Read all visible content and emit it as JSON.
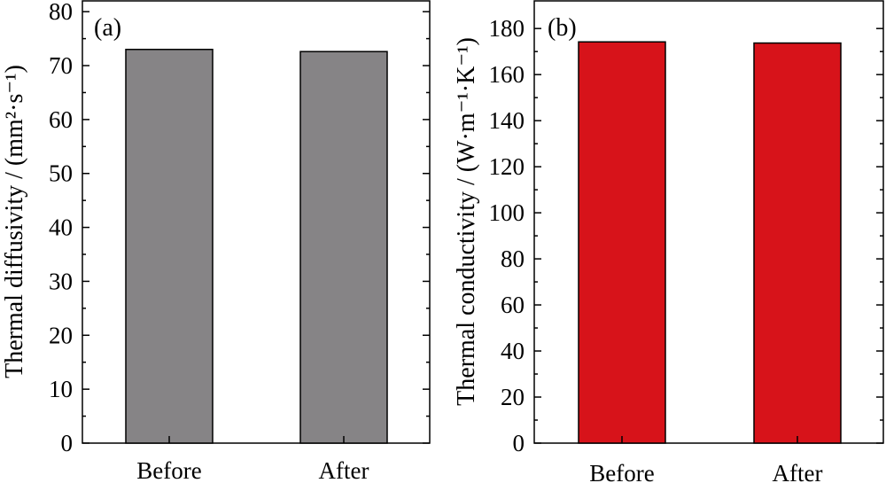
{
  "chart_data": [
    {
      "type": "bar",
      "panel_label": "(a)",
      "categories": [
        "Before",
        "After"
      ],
      "values": [
        73.0,
        72.6
      ],
      "ylabel": "Thermal diffusivity / (mm²·s⁻¹)",
      "ylim": [
        0,
        82
      ],
      "yticks": [
        0,
        10,
        20,
        30,
        40,
        50,
        60,
        70,
        80
      ],
      "bar_color": "#868486",
      "grid": false
    },
    {
      "type": "bar",
      "panel_label": "(b)",
      "categories": [
        "Before",
        "After"
      ],
      "values": [
        174.2,
        173.7
      ],
      "ylabel": "Thermal conductivity / (W·m⁻¹·K⁻¹)",
      "ylim": [
        0,
        192
      ],
      "yticks": [
        0,
        20,
        40,
        60,
        80,
        100,
        120,
        140,
        160,
        180
      ],
      "bar_color": "#d7131a",
      "grid": false
    }
  ]
}
